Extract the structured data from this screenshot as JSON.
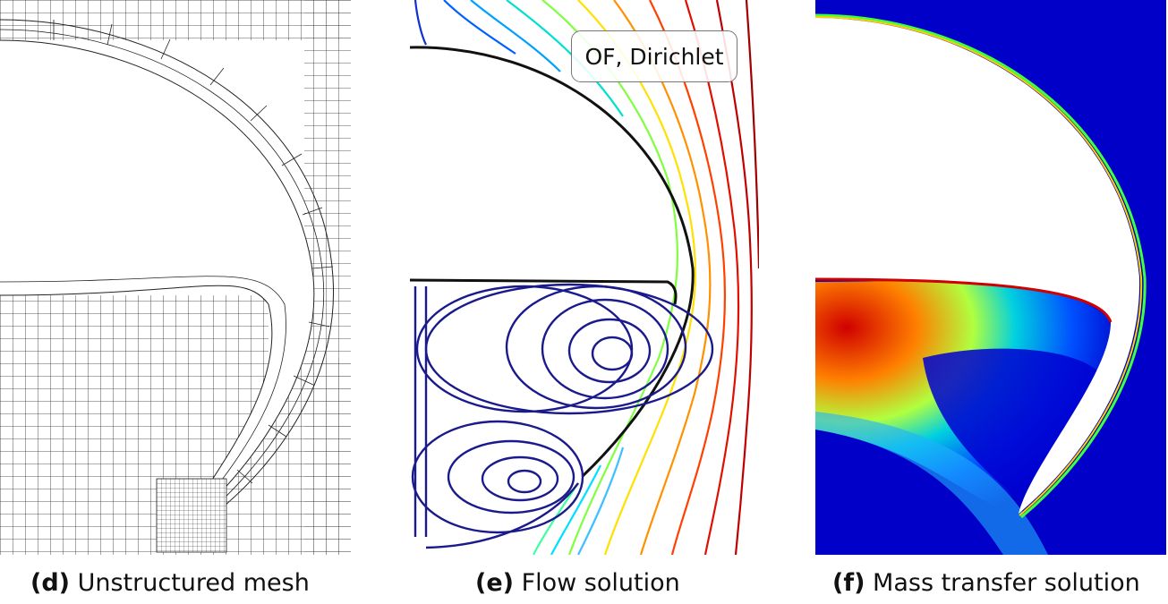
{
  "panels": [
    {
      "id": "d",
      "label": "(d)",
      "caption": "Unstructured mesh"
    },
    {
      "id": "e",
      "label": "(e)",
      "caption": "Flow solution",
      "legend": "OF, Dirichlet"
    },
    {
      "id": "f",
      "label": "(f)",
      "caption": "Mass transfer solution"
    }
  ],
  "colors": {
    "mesh_line": "#222222",
    "interface": "#111111",
    "vortex": "#1a1a8c",
    "mass_background": "#0000c8",
    "mass_high": "#d40000"
  },
  "colormap": [
    "#00008f",
    "#0000ff",
    "#00a0ff",
    "#00ffd0",
    "#60ff60",
    "#ffff00",
    "#ff9000",
    "#ff2000",
    "#b00000"
  ]
}
